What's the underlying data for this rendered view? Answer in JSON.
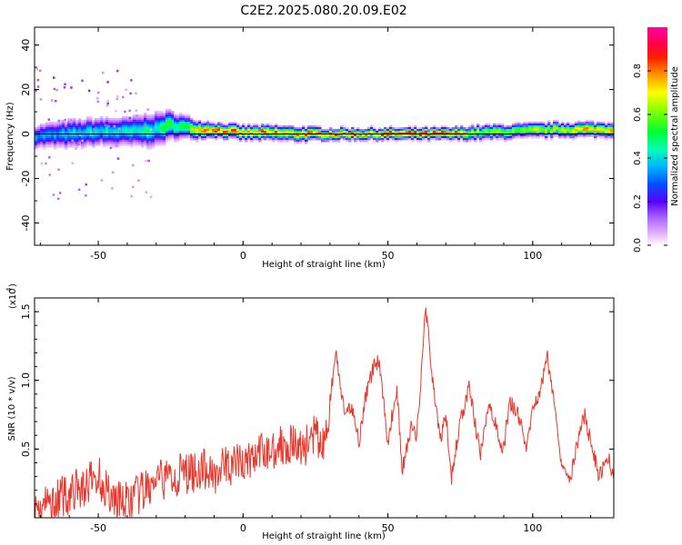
{
  "title": "C2E2.2025.080.20.09.E02",
  "chart_data": [
    {
      "type": "heatmap",
      "title": "C2E2.2025.080.20.09.E02",
      "xlabel": "Height of straight line (km)",
      "ylabel": "Frequency (Hz)",
      "xlim": [
        -72,
        128
      ],
      "ylim": [
        -50,
        48
      ],
      "xticks": [
        "-50",
        "0",
        "50",
        "100"
      ],
      "yticks": [
        "-40",
        "-20",
        "0",
        "20",
        "40"
      ],
      "colorbar": {
        "label": "Normalized spectral amplitude",
        "range": [
          0.0,
          1.0
        ],
        "ticks": [
          "0.0",
          "0.2",
          "0.4",
          "0.6",
          "0.8"
        ]
      },
      "ridge": {
        "description_units": "center frequency (Hz) vs height (km)",
        "x": [
          -72,
          -60,
          -50,
          -40,
          -30,
          -25,
          -20,
          -15,
          -10,
          0,
          10,
          20,
          30,
          40,
          50,
          60,
          70,
          80,
          90,
          100,
          110,
          120,
          128
        ],
        "center": [
          -1,
          0,
          1,
          1,
          2,
          4,
          3,
          2,
          2,
          0.5,
          0.5,
          0,
          0,
          0,
          0,
          0,
          0,
          0.5,
          1,
          1.5,
          2,
          2,
          2
        ],
        "width": [
          4,
          5,
          5,
          5,
          6,
          5,
          4,
          3,
          2.5,
          2.5,
          2.5,
          2.5,
          2,
          2,
          2,
          2,
          2,
          2.5,
          2.5,
          2.5,
          2.5,
          2.5,
          2.5
        ],
        "amplitude": [
          0.35,
          0.4,
          0.45,
          0.45,
          0.5,
          0.55,
          0.6,
          0.75,
          0.9,
          0.85,
          0.85,
          0.85,
          0.9,
          0.85,
          0.9,
          0.95,
          1.0,
          0.7,
          0.65,
          0.7,
          0.75,
          0.8,
          0.85
        ]
      }
    },
    {
      "type": "line",
      "xlabel": "Height of straight line (km)",
      "ylabel": "SNR (10 * v/v)",
      "multiplier_label": "(x10",
      "multiplier_exp": "4",
      "xlim": [
        -72,
        128
      ],
      "ylim": [
        0,
        1.6
      ],
      "xticks": [
        "-50",
        "0",
        "50",
        "100"
      ],
      "yticks": [
        "0.5",
        "1.0",
        "1.5"
      ],
      "color": "#e8372c",
      "series": [
        {
          "name": "SNR",
          "x": [
            -72,
            -65,
            -60,
            -55,
            -50,
            -45,
            -40,
            -35,
            -30,
            -25,
            -20,
            -15,
            -10,
            -5,
            0,
            5,
            10,
            15,
            20,
            25,
            28,
            30,
            32,
            35,
            38,
            40,
            42,
            45,
            47,
            50,
            53,
            55,
            58,
            60,
            62,
            63,
            65,
            68,
            70,
            72,
            75,
            78,
            80,
            82,
            85,
            88,
            90,
            92,
            95,
            98,
            100,
            103,
            105,
            107,
            110,
            113,
            115,
            118,
            120,
            123,
            126,
            128
          ],
          "y": [
            0.05,
            0.12,
            0.18,
            0.22,
            0.3,
            0.15,
            0.1,
            0.18,
            0.25,
            0.3,
            0.32,
            0.35,
            0.33,
            0.38,
            0.4,
            0.45,
            0.5,
            0.55,
            0.5,
            0.6,
            0.5,
            0.85,
            1.2,
            0.75,
            0.8,
            0.55,
            0.85,
            1.1,
            1.15,
            0.55,
            0.95,
            0.35,
            0.65,
            0.6,
            1.2,
            1.55,
            1.1,
            0.55,
            0.75,
            0.3,
            0.7,
            0.95,
            0.7,
            0.45,
            0.85,
            0.6,
            0.5,
            0.85,
            0.75,
            0.5,
            0.8,
            0.95,
            1.18,
            0.9,
            0.4,
            0.3,
            0.5,
            0.75,
            0.55,
            0.3,
            0.45,
            0.3
          ]
        }
      ]
    }
  ]
}
